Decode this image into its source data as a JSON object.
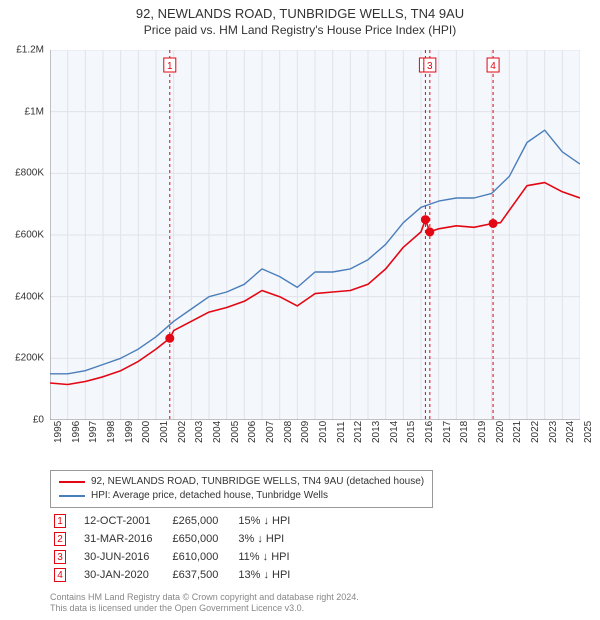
{
  "title": {
    "main": "92, NEWLANDS ROAD, TUNBRIDGE WELLS, TN4 9AU",
    "sub": "Price paid vs. HM Land Registry's House Price Index (HPI)",
    "fontsize_main": 13,
    "fontsize_sub": 12
  },
  "chart": {
    "type": "line",
    "background_color": "#ffffff",
    "plot_background_color": "#f4f7fb",
    "grid_color": "#e0e4ea",
    "axis_color": "#888888",
    "ylim": [
      0,
      1200000
    ],
    "ytick_step": 200000,
    "yticks": [
      "£0",
      "£200K",
      "£400K",
      "£600K",
      "£800K",
      "£1M",
      "£1.2M"
    ],
    "xlim": [
      1995,
      2025
    ],
    "xticks": [
      1995,
      1996,
      1997,
      1998,
      1999,
      2000,
      2001,
      2002,
      2003,
      2004,
      2005,
      2006,
      2007,
      2008,
      2009,
      2010,
      2011,
      2012,
      2013,
      2014,
      2015,
      2016,
      2017,
      2018,
      2019,
      2020,
      2021,
      2022,
      2023,
      2024,
      2025
    ],
    "label_fontsize": 10,
    "series": [
      {
        "name": "red",
        "label": "92, NEWLANDS ROAD, TUNBRIDGE WELLS, TN4 9AU (detached house)",
        "color": "#e30613",
        "line_width": 1.6,
        "data": [
          [
            1995,
            120000
          ],
          [
            1996,
            115000
          ],
          [
            1997,
            125000
          ],
          [
            1998,
            140000
          ],
          [
            1999,
            160000
          ],
          [
            2000,
            190000
          ],
          [
            2001,
            230000
          ],
          [
            2001.78,
            265000
          ],
          [
            2002,
            290000
          ],
          [
            2003,
            320000
          ],
          [
            2004,
            350000
          ],
          [
            2005,
            365000
          ],
          [
            2006,
            385000
          ],
          [
            2007,
            420000
          ],
          [
            2008,
            400000
          ],
          [
            2009,
            370000
          ],
          [
            2010,
            410000
          ],
          [
            2011,
            415000
          ],
          [
            2012,
            420000
          ],
          [
            2013,
            440000
          ],
          [
            2014,
            490000
          ],
          [
            2015,
            560000
          ],
          [
            2016,
            610000
          ],
          [
            2016.25,
            650000
          ],
          [
            2016.5,
            610000
          ],
          [
            2017,
            620000
          ],
          [
            2018,
            630000
          ],
          [
            2019,
            625000
          ],
          [
            2020.08,
            637500
          ],
          [
            2020.5,
            640000
          ],
          [
            2021,
            680000
          ],
          [
            2022,
            760000
          ],
          [
            2023,
            770000
          ],
          [
            2024,
            740000
          ],
          [
            2025,
            720000
          ]
        ]
      },
      {
        "name": "blue",
        "label": "HPI: Average price, detached house, Tunbridge Wells",
        "color": "#4a7ebb",
        "line_width": 1.4,
        "data": [
          [
            1995,
            150000
          ],
          [
            1996,
            150000
          ],
          [
            1997,
            160000
          ],
          [
            1998,
            180000
          ],
          [
            1999,
            200000
          ],
          [
            2000,
            230000
          ],
          [
            2001,
            270000
          ],
          [
            2002,
            320000
          ],
          [
            2003,
            360000
          ],
          [
            2004,
            400000
          ],
          [
            2005,
            415000
          ],
          [
            2006,
            440000
          ],
          [
            2007,
            490000
          ],
          [
            2008,
            465000
          ],
          [
            2009,
            430000
          ],
          [
            2010,
            480000
          ],
          [
            2011,
            480000
          ],
          [
            2012,
            490000
          ],
          [
            2013,
            520000
          ],
          [
            2014,
            570000
          ],
          [
            2015,
            640000
          ],
          [
            2016,
            690000
          ],
          [
            2017,
            710000
          ],
          [
            2018,
            720000
          ],
          [
            2019,
            720000
          ],
          [
            2020,
            735000
          ],
          [
            2021,
            790000
          ],
          [
            2022,
            900000
          ],
          [
            2023,
            940000
          ],
          [
            2024,
            870000
          ],
          [
            2025,
            830000
          ]
        ]
      }
    ],
    "event_markers": [
      {
        "n": "1",
        "year": 2001.78,
        "value": 265000
      },
      {
        "n": "2",
        "year": 2016.25,
        "value": 650000,
        "label_at_top": false
      },
      {
        "n": "3",
        "year": 2016.5,
        "value": 610000
      },
      {
        "n": "4",
        "year": 2020.08,
        "value": 637500
      }
    ],
    "marker_box_color": "#e30613",
    "marker_box_fill": "#ffffff",
    "marker_dot_color": "#e30613",
    "vline_color": "#e30613",
    "vline_dash": "3 3"
  },
  "legend": {
    "items": [
      {
        "color": "#e30613",
        "label": "92, NEWLANDS ROAD, TUNBRIDGE WELLS, TN4 9AU (detached house)"
      },
      {
        "color": "#4a7ebb",
        "label": "HPI: Average price, detached house, Tunbridge Wells"
      }
    ],
    "border_color": "#999999",
    "fontsize": 10
  },
  "events_table": {
    "fontsize": 11,
    "rows": [
      {
        "n": "1",
        "date": "12-OCT-2001",
        "price": "£265,000",
        "pct": "15%",
        "dir": "down",
        "vs": "HPI"
      },
      {
        "n": "2",
        "date": "31-MAR-2016",
        "price": "£650,000",
        "pct": "3%",
        "dir": "down",
        "vs": "HPI"
      },
      {
        "n": "3",
        "date": "30-JUN-2016",
        "price": "£610,000",
        "pct": "11%",
        "dir": "down",
        "vs": "HPI"
      },
      {
        "n": "4",
        "date": "30-JAN-2020",
        "price": "£637,500",
        "pct": "13%",
        "dir": "down",
        "vs": "HPI"
      }
    ]
  },
  "footer": {
    "line1": "Contains HM Land Registry data © Crown copyright and database right 2024.",
    "line2": "This data is licensed under the Open Government Licence v3.0.",
    "color": "#888888",
    "fontsize": 9
  }
}
